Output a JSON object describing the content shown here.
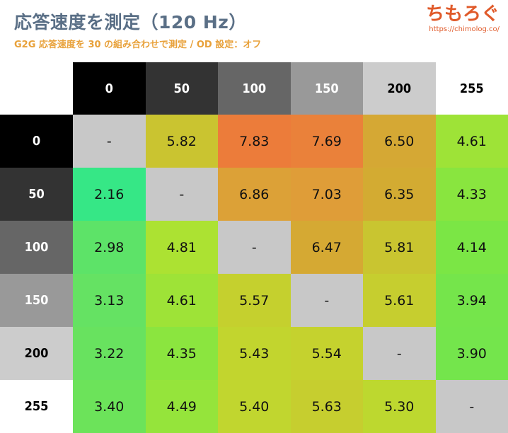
{
  "header": {
    "title": "応答速度を測定（120 Hz）",
    "subtitle": "G2G 応答速度を 30 の組み合わせで測定 / OD 設定：オフ",
    "brand_name": "ちもろぐ",
    "brand_url": "https://chimolog.co/"
  },
  "colors": {
    "title": "#5a6f86",
    "subtitle": "#e8a13a",
    "brand": "#e05a2a",
    "diagonal": "#c8c8c8",
    "level_0": "#000000",
    "level_50": "#333333",
    "level_100": "#666666",
    "level_150": "#999999",
    "level_200": "#cccccc",
    "level_255": "#ffffff"
  },
  "chart_data": {
    "type": "heatmap",
    "title": "応答速度を測定（120 Hz）",
    "subtitle": "G2G 応答速度を 30 の組み合わせで測定 / OD 設定：オフ",
    "columns": [
      "0",
      "50",
      "100",
      "150",
      "200",
      "255"
    ],
    "rows": [
      "0",
      "50",
      "100",
      "150",
      "200",
      "255"
    ],
    "column_colors": [
      "#000000",
      "#333333",
      "#666666",
      "#999999",
      "#cccccc",
      "#ffffff"
    ],
    "column_text_colors": [
      "#ffffff",
      "#ffffff",
      "#ffffff",
      "#ffffff",
      "#000000",
      "#000000"
    ],
    "values": [
      [
        "-",
        "5.82",
        "7.83",
        "7.69",
        "6.50",
        "4.61"
      ],
      [
        "2.16",
        "-",
        "6.86",
        "7.03",
        "6.35",
        "4.33"
      ],
      [
        "2.98",
        "4.81",
        "-",
        "6.47",
        "5.81",
        "4.14"
      ],
      [
        "3.13",
        "4.61",
        "5.57",
        "-",
        "5.61",
        "3.94"
      ],
      [
        "3.22",
        "4.35",
        "5.43",
        "5.54",
        "-",
        "3.90"
      ],
      [
        "3.40",
        "4.49",
        "5.40",
        "5.63",
        "5.30",
        "-"
      ]
    ]
  }
}
